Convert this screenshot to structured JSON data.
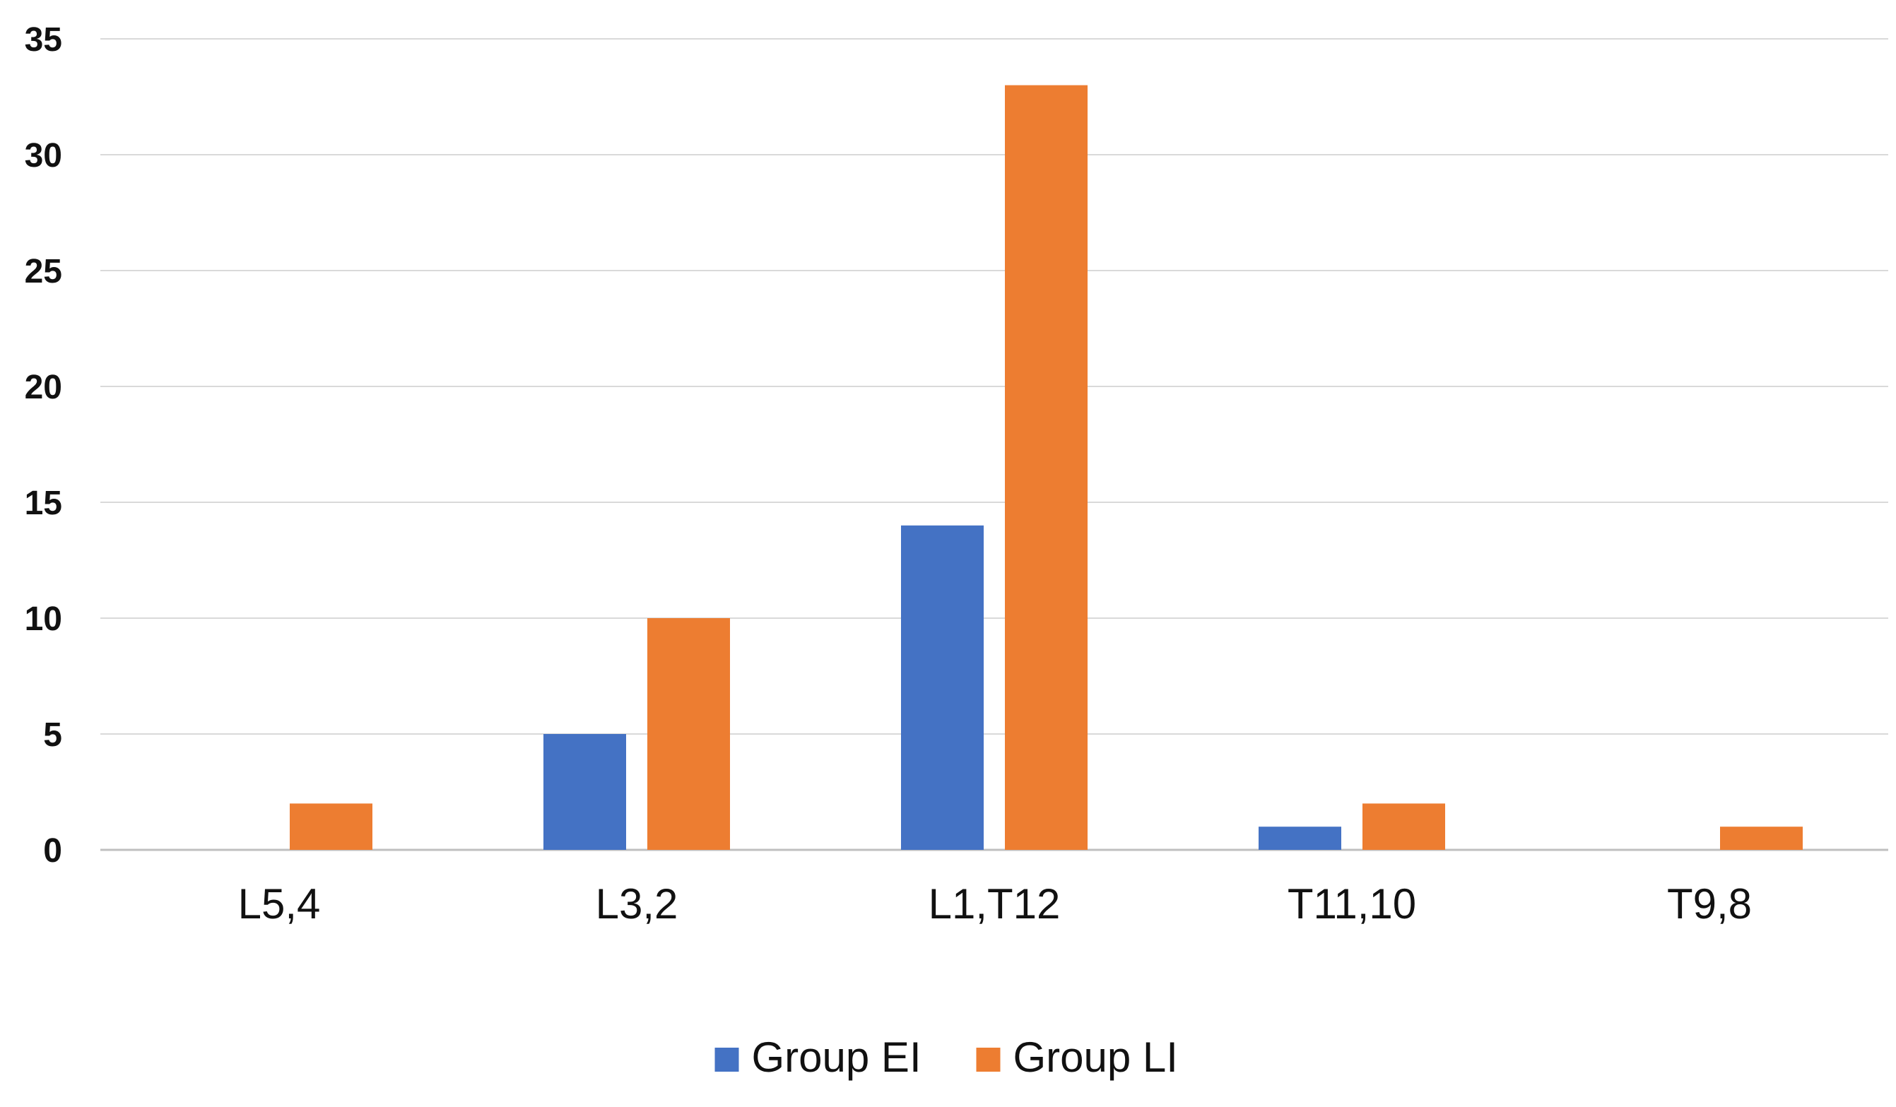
{
  "chart_data": {
    "type": "bar",
    "categories": [
      "L5,4",
      "L3,2",
      "L1,T12",
      "T11,10",
      "T9,8"
    ],
    "series": [
      {
        "name": "Group EI",
        "color": "#4472c4",
        "values": [
          0,
          5,
          14,
          1,
          0
        ]
      },
      {
        "name": "Group LI",
        "color": "#ed7d31",
        "values": [
          2,
          10,
          33,
          2,
          1
        ]
      }
    ],
    "yticks": [
      "0",
      "5",
      "10",
      "15",
      "20",
      "25",
      "30",
      "35"
    ],
    "ylim": [
      0,
      35
    ],
    "grid": true,
    "legend": "bottom-center",
    "title": "",
    "xlabel": "",
    "ylabel": ""
  }
}
